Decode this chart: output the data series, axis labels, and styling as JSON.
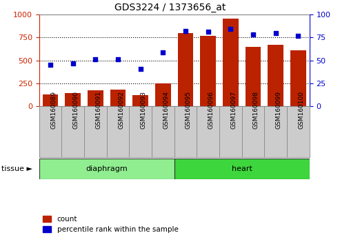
{
  "title": "GDS3224 / 1373656_at",
  "samples": [
    "GSM160089",
    "GSM160090",
    "GSM160091",
    "GSM160092",
    "GSM160093",
    "GSM160094",
    "GSM160095",
    "GSM160096",
    "GSM160097",
    "GSM160098",
    "GSM160099",
    "GSM160100"
  ],
  "counts": [
    130,
    145,
    170,
    180,
    120,
    250,
    800,
    770,
    960,
    650,
    670,
    610
  ],
  "percentiles": [
    45,
    47,
    51,
    51,
    41,
    59,
    82,
    81,
    84,
    78,
    80,
    77
  ],
  "tissue_groups": [
    {
      "label": "diaphragm",
      "start": 0,
      "end": 6,
      "color": "#90ee90"
    },
    {
      "label": "heart",
      "start": 6,
      "end": 12,
      "color": "#3dd63d"
    }
  ],
  "bar_color": "#bb2200",
  "dot_color": "#0000cc",
  "ylim_left": [
    0,
    1000
  ],
  "ylim_right": [
    0,
    100
  ],
  "yticks_left": [
    0,
    250,
    500,
    750,
    1000
  ],
  "yticks_right": [
    0,
    25,
    50,
    75,
    100
  ],
  "left_tick_color": "#cc2200",
  "right_tick_color": "#0000cc",
  "grid_color": "#000000",
  "tick_box_color": "#cccccc",
  "tick_box_edge": "#888888",
  "tissue_label": "tissue ►",
  "legend_count_label": "count",
  "legend_pct_label": "percentile rank within the sample"
}
